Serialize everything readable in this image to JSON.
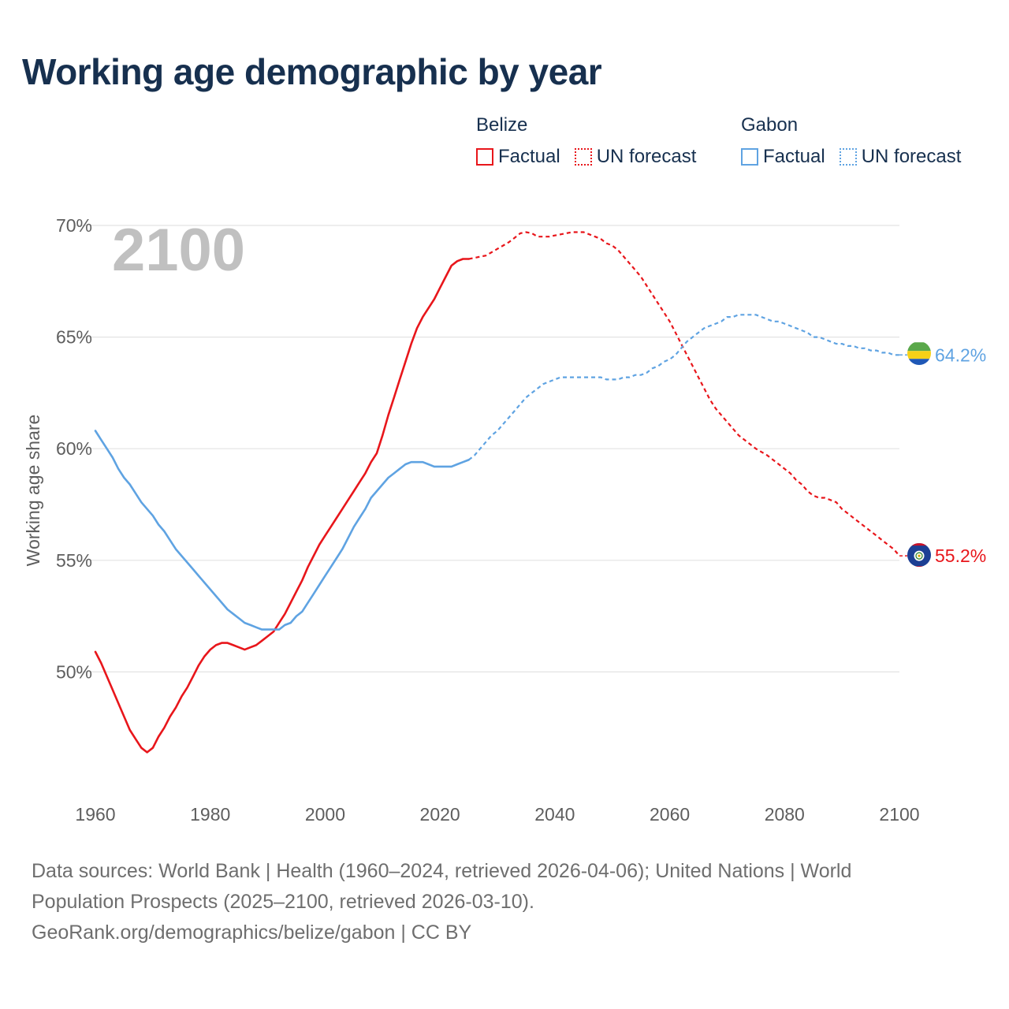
{
  "title": "Working age demographic by year",
  "legend": [
    {
      "country": "Belize",
      "factual_label": "Factual",
      "forecast_label": "UN forecast",
      "color": "#e8161b"
    },
    {
      "country": "Gabon",
      "factual_label": "Factual",
      "forecast_label": "UN forecast",
      "color": "#5fa3e2"
    }
  ],
  "footer": {
    "line1": "Data sources: World Bank | Health (1960–2024, retrieved 2026-04-06); United Nations | World",
    "line2": "Population Prospects (2025–2100, retrieved 2026-03-10).",
    "line3": "GeoRank.org/demographics/belize/gabon | CC BY"
  },
  "chart_data": {
    "type": "line",
    "title": "Working age demographic by year",
    "year_display": "2100",
    "xlabel": "",
    "ylabel": "Working age share",
    "xlim": [
      1960,
      2100
    ],
    "ylim": [
      45,
      70
    ],
    "x_ticks": [
      1960,
      1980,
      2000,
      2020,
      2040,
      2060,
      2080,
      2100
    ],
    "y_ticks": [
      50,
      55,
      60,
      65,
      70
    ],
    "y_tick_labels": [
      "50%",
      "55%",
      "60%",
      "65%",
      "70%"
    ],
    "factual_end_year": 2025,
    "series": [
      {
        "name": "Belize",
        "color": "#e8161b",
        "end_label": "55.2%",
        "flag": "belize-flag",
        "points": [
          [
            1960,
            50.9
          ],
          [
            1961,
            50.4
          ],
          [
            1962,
            49.8
          ],
          [
            1963,
            49.2
          ],
          [
            1964,
            48.6
          ],
          [
            1965,
            48.0
          ],
          [
            1966,
            47.4
          ],
          [
            1967,
            47.0
          ],
          [
            1968,
            46.6
          ],
          [
            1969,
            46.4
          ],
          [
            1970,
            46.6
          ],
          [
            1971,
            47.1
          ],
          [
            1972,
            47.5
          ],
          [
            1973,
            48.0
          ],
          [
            1974,
            48.4
          ],
          [
            1975,
            48.9
          ],
          [
            1976,
            49.3
          ],
          [
            1977,
            49.8
          ],
          [
            1978,
            50.3
          ],
          [
            1979,
            50.7
          ],
          [
            1980,
            51.0
          ],
          [
            1981,
            51.2
          ],
          [
            1982,
            51.3
          ],
          [
            1983,
            51.3
          ],
          [
            1984,
            51.2
          ],
          [
            1985,
            51.1
          ],
          [
            1986,
            51.0
          ],
          [
            1987,
            51.1
          ],
          [
            1988,
            51.2
          ],
          [
            1989,
            51.4
          ],
          [
            1990,
            51.6
          ],
          [
            1991,
            51.8
          ],
          [
            1992,
            52.2
          ],
          [
            1993,
            52.6
          ],
          [
            1994,
            53.1
          ],
          [
            1995,
            53.6
          ],
          [
            1996,
            54.1
          ],
          [
            1997,
            54.7
          ],
          [
            1998,
            55.2
          ],
          [
            1999,
            55.7
          ],
          [
            2000,
            56.1
          ],
          [
            2001,
            56.5
          ],
          [
            2002,
            56.9
          ],
          [
            2003,
            57.3
          ],
          [
            2004,
            57.7
          ],
          [
            2005,
            58.1
          ],
          [
            2006,
            58.5
          ],
          [
            2007,
            58.9
          ],
          [
            2008,
            59.4
          ],
          [
            2009,
            59.8
          ],
          [
            2010,
            60.6
          ],
          [
            2011,
            61.5
          ],
          [
            2012,
            62.3
          ],
          [
            2013,
            63.1
          ],
          [
            2014,
            63.9
          ],
          [
            2015,
            64.7
          ],
          [
            2016,
            65.4
          ],
          [
            2017,
            65.9
          ],
          [
            2018,
            66.3
          ],
          [
            2019,
            66.7
          ],
          [
            2020,
            67.2
          ],
          [
            2021,
            67.7
          ],
          [
            2022,
            68.2
          ],
          [
            2023,
            68.4
          ],
          [
            2024,
            68.5
          ],
          [
            2025,
            68.5
          ],
          [
            2026,
            68.55
          ],
          [
            2027,
            68.6
          ],
          [
            2028,
            68.65
          ],
          [
            2029,
            68.8
          ],
          [
            2030,
            68.95
          ],
          [
            2031,
            69.1
          ],
          [
            2032,
            69.25
          ],
          [
            2033,
            69.45
          ],
          [
            2034,
            69.65
          ],
          [
            2035,
            69.7
          ],
          [
            2036,
            69.65
          ],
          [
            2037,
            69.5
          ],
          [
            2038,
            69.5
          ],
          [
            2039,
            69.5
          ],
          [
            2040,
            69.55
          ],
          [
            2041,
            69.6
          ],
          [
            2042,
            69.65
          ],
          [
            2043,
            69.7
          ],
          [
            2044,
            69.7
          ],
          [
            2045,
            69.7
          ],
          [
            2046,
            69.6
          ],
          [
            2047,
            69.5
          ],
          [
            2048,
            69.4
          ],
          [
            2049,
            69.2
          ],
          [
            2050,
            69.1
          ],
          [
            2051,
            68.9
          ],
          [
            2052,
            68.6
          ],
          [
            2053,
            68.3
          ],
          [
            2054,
            68.0
          ],
          [
            2055,
            67.7
          ],
          [
            2056,
            67.3
          ],
          [
            2057,
            66.9
          ],
          [
            2058,
            66.5
          ],
          [
            2059,
            66.1
          ],
          [
            2060,
            65.7
          ],
          [
            2061,
            65.2
          ],
          [
            2062,
            64.7
          ],
          [
            2063,
            64.2
          ],
          [
            2064,
            63.7
          ],
          [
            2065,
            63.2
          ],
          [
            2066,
            62.7
          ],
          [
            2067,
            62.2
          ],
          [
            2068,
            61.8
          ],
          [
            2069,
            61.5
          ],
          [
            2070,
            61.2
          ],
          [
            2071,
            60.9
          ],
          [
            2072,
            60.6
          ],
          [
            2073,
            60.4
          ],
          [
            2074,
            60.2
          ],
          [
            2075,
            60.0
          ],
          [
            2076,
            59.85
          ],
          [
            2077,
            59.7
          ],
          [
            2078,
            59.5
          ],
          [
            2079,
            59.3
          ],
          [
            2080,
            59.1
          ],
          [
            2081,
            58.9
          ],
          [
            2082,
            58.6
          ],
          [
            2083,
            58.4
          ],
          [
            2084,
            58.1
          ],
          [
            2085,
            57.9
          ],
          [
            2086,
            57.8
          ],
          [
            2087,
            57.8
          ],
          [
            2088,
            57.7
          ],
          [
            2089,
            57.6
          ],
          [
            2090,
            57.3
          ],
          [
            2091,
            57.1
          ],
          [
            2092,
            56.9
          ],
          [
            2093,
            56.7
          ],
          [
            2094,
            56.5
          ],
          [
            2095,
            56.3
          ],
          [
            2096,
            56.1
          ],
          [
            2097,
            55.9
          ],
          [
            2098,
            55.7
          ],
          [
            2099,
            55.5
          ],
          [
            2100,
            55.2
          ]
        ]
      },
      {
        "name": "Gabon",
        "color": "#5fa3e2",
        "end_label": "64.2%",
        "flag": "gabon-flag",
        "points": [
          [
            1960,
            60.8
          ],
          [
            1961,
            60.4
          ],
          [
            1962,
            60.0
          ],
          [
            1963,
            59.6
          ],
          [
            1964,
            59.1
          ],
          [
            1965,
            58.7
          ],
          [
            1966,
            58.4
          ],
          [
            1967,
            58.0
          ],
          [
            1968,
            57.6
          ],
          [
            1969,
            57.3
          ],
          [
            1970,
            57.0
          ],
          [
            1971,
            56.6
          ],
          [
            1972,
            56.3
          ],
          [
            1973,
            55.9
          ],
          [
            1974,
            55.5
          ],
          [
            1975,
            55.2
          ],
          [
            1976,
            54.9
          ],
          [
            1977,
            54.6
          ],
          [
            1978,
            54.3
          ],
          [
            1979,
            54.0
          ],
          [
            1980,
            53.7
          ],
          [
            1981,
            53.4
          ],
          [
            1982,
            53.1
          ],
          [
            1983,
            52.8
          ],
          [
            1984,
            52.6
          ],
          [
            1985,
            52.4
          ],
          [
            1986,
            52.2
          ],
          [
            1987,
            52.1
          ],
          [
            1988,
            52.0
          ],
          [
            1989,
            51.9
          ],
          [
            1990,
            51.9
          ],
          [
            1991,
            51.9
          ],
          [
            1992,
            51.9
          ],
          [
            1993,
            52.1
          ],
          [
            1994,
            52.2
          ],
          [
            1995,
            52.5
          ],
          [
            1996,
            52.7
          ],
          [
            1997,
            53.1
          ],
          [
            1998,
            53.5
          ],
          [
            1999,
            53.9
          ],
          [
            2000,
            54.3
          ],
          [
            2001,
            54.7
          ],
          [
            2002,
            55.1
          ],
          [
            2003,
            55.5
          ],
          [
            2004,
            56.0
          ],
          [
            2005,
            56.5
          ],
          [
            2006,
            56.9
          ],
          [
            2007,
            57.3
          ],
          [
            2008,
            57.8
          ],
          [
            2009,
            58.1
          ],
          [
            2010,
            58.4
          ],
          [
            2011,
            58.7
          ],
          [
            2012,
            58.9
          ],
          [
            2013,
            59.1
          ],
          [
            2014,
            59.3
          ],
          [
            2015,
            59.4
          ],
          [
            2016,
            59.4
          ],
          [
            2017,
            59.4
          ],
          [
            2018,
            59.3
          ],
          [
            2019,
            59.2
          ],
          [
            2020,
            59.2
          ],
          [
            2021,
            59.2
          ],
          [
            2022,
            59.2
          ],
          [
            2023,
            59.3
          ],
          [
            2024,
            59.4
          ],
          [
            2025,
            59.5
          ],
          [
            2026,
            59.7
          ],
          [
            2027,
            60.0
          ],
          [
            2028,
            60.3
          ],
          [
            2029,
            60.6
          ],
          [
            2030,
            60.8
          ],
          [
            2031,
            61.1
          ],
          [
            2032,
            61.4
          ],
          [
            2033,
            61.7
          ],
          [
            2034,
            62.0
          ],
          [
            2035,
            62.3
          ],
          [
            2036,
            62.5
          ],
          [
            2037,
            62.7
          ],
          [
            2038,
            62.9
          ],
          [
            2039,
            63.0
          ],
          [
            2040,
            63.1
          ],
          [
            2041,
            63.2
          ],
          [
            2042,
            63.2
          ],
          [
            2043,
            63.2
          ],
          [
            2044,
            63.2
          ],
          [
            2045,
            63.2
          ],
          [
            2046,
            63.2
          ],
          [
            2047,
            63.2
          ],
          [
            2048,
            63.2
          ],
          [
            2049,
            63.1
          ],
          [
            2050,
            63.1
          ],
          [
            2051,
            63.1
          ],
          [
            2052,
            63.2
          ],
          [
            2053,
            63.2
          ],
          [
            2054,
            63.3
          ],
          [
            2055,
            63.3
          ],
          [
            2056,
            63.4
          ],
          [
            2057,
            63.6
          ],
          [
            2058,
            63.7
          ],
          [
            2059,
            63.9
          ],
          [
            2060,
            64.0
          ],
          [
            2061,
            64.2
          ],
          [
            2062,
            64.5
          ],
          [
            2063,
            64.8
          ],
          [
            2064,
            65.0
          ],
          [
            2065,
            65.2
          ],
          [
            2066,
            65.4
          ],
          [
            2067,
            65.5
          ],
          [
            2068,
            65.6
          ],
          [
            2069,
            65.7
          ],
          [
            2070,
            65.9
          ],
          [
            2071,
            65.9
          ],
          [
            2072,
            66.0
          ],
          [
            2073,
            66.0
          ],
          [
            2074,
            66.0
          ],
          [
            2075,
            66.0
          ],
          [
            2076,
            65.9
          ],
          [
            2077,
            65.8
          ],
          [
            2078,
            65.7
          ],
          [
            2079,
            65.7
          ],
          [
            2080,
            65.6
          ],
          [
            2081,
            65.5
          ],
          [
            2082,
            65.4
          ],
          [
            2083,
            65.3
          ],
          [
            2084,
            65.2
          ],
          [
            2085,
            65.0
          ],
          [
            2086,
            65.0
          ],
          [
            2087,
            64.9
          ],
          [
            2088,
            64.8
          ],
          [
            2089,
            64.7
          ],
          [
            2090,
            64.7
          ],
          [
            2091,
            64.6
          ],
          [
            2092,
            64.6
          ],
          [
            2093,
            64.5
          ],
          [
            2094,
            64.5
          ],
          [
            2095,
            64.4
          ],
          [
            2096,
            64.4
          ],
          [
            2097,
            64.3
          ],
          [
            2098,
            64.3
          ],
          [
            2099,
            64.2
          ],
          [
            2100,
            64.2
          ]
        ]
      }
    ]
  }
}
